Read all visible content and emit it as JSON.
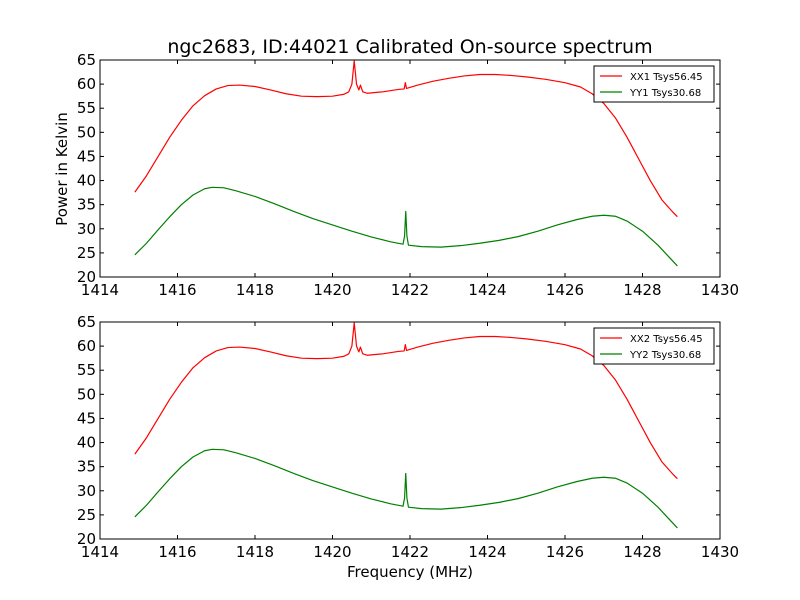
{
  "chart_data": [
    {
      "type": "line",
      "title": "ngc2683, ID:44021 Calibrated On-source spectrum",
      "xlabel": "",
      "ylabel": "Power in Kelvin",
      "xlim": [
        1414,
        1430
      ],
      "ylim": [
        20,
        65
      ],
      "xticks": [
        "1414",
        "1416",
        "1418",
        "1420",
        "1422",
        "1424",
        "1426",
        "1428",
        "1430"
      ],
      "yticks": [
        "20",
        "25",
        "30",
        "35",
        "40",
        "45",
        "50",
        "55",
        "60",
        "65"
      ],
      "legend": "top-right",
      "grid": false,
      "series": [
        {
          "name": "XX1 Tsys56.45",
          "color": "#ff0000",
          "points": [
            [
              1414.9,
              37.6
            ],
            [
              1415.2,
              41.0
            ],
            [
              1415.5,
              45.0
            ],
            [
              1415.8,
              49.0
            ],
            [
              1416.1,
              52.5
            ],
            [
              1416.4,
              55.5
            ],
            [
              1416.7,
              57.6
            ],
            [
              1417.0,
              59.0
            ],
            [
              1417.3,
              59.7
            ],
            [
              1417.6,
              59.8
            ],
            [
              1418.0,
              59.5
            ],
            [
              1418.4,
              58.8
            ],
            [
              1418.8,
              58.0
            ],
            [
              1419.2,
              57.5
            ],
            [
              1419.6,
              57.4
            ],
            [
              1420.0,
              57.5
            ],
            [
              1420.3,
              57.9
            ],
            [
              1420.42,
              58.4
            ],
            [
              1420.5,
              60.0
            ],
            [
              1420.56,
              64.8
            ],
            [
              1420.62,
              60.0
            ],
            [
              1420.68,
              58.8
            ],
            [
              1420.72,
              59.8
            ],
            [
              1420.78,
              58.4
            ],
            [
              1420.9,
              58.1
            ],
            [
              1421.3,
              58.4
            ],
            [
              1421.7,
              58.9
            ],
            [
              1421.85,
              59.0
            ],
            [
              1421.88,
              60.3
            ],
            [
              1421.91,
              59.1
            ],
            [
              1422.2,
              59.8
            ],
            [
              1422.6,
              60.6
            ],
            [
              1423.0,
              61.2
            ],
            [
              1423.4,
              61.7
            ],
            [
              1423.8,
              62.0
            ],
            [
              1424.2,
              62.0
            ],
            [
              1424.6,
              61.8
            ],
            [
              1425.0,
              61.5
            ],
            [
              1425.5,
              61.0
            ],
            [
              1426.0,
              60.3
            ],
            [
              1426.4,
              59.4
            ],
            [
              1426.7,
              58.0
            ],
            [
              1427.0,
              56.0
            ],
            [
              1427.3,
              53.0
            ],
            [
              1427.6,
              49.0
            ],
            [
              1427.9,
              44.5
            ],
            [
              1428.2,
              40.0
            ],
            [
              1428.5,
              36.0
            ],
            [
              1428.8,
              33.3
            ],
            [
              1428.9,
              32.5
            ]
          ]
        },
        {
          "name": "YY1 Tsys30.68",
          "color": "#008000",
          "points": [
            [
              1414.9,
              24.6
            ],
            [
              1415.2,
              27.0
            ],
            [
              1415.5,
              29.8
            ],
            [
              1415.8,
              32.5
            ],
            [
              1416.1,
              35.0
            ],
            [
              1416.4,
              37.0
            ],
            [
              1416.7,
              38.3
            ],
            [
              1416.9,
              38.6
            ],
            [
              1417.2,
              38.5
            ],
            [
              1417.5,
              37.9
            ],
            [
              1418.0,
              36.7
            ],
            [
              1418.5,
              35.2
            ],
            [
              1419.0,
              33.6
            ],
            [
              1419.5,
              32.1
            ],
            [
              1420.0,
              30.8
            ],
            [
              1420.5,
              29.5
            ],
            [
              1421.0,
              28.3
            ],
            [
              1421.5,
              27.3
            ],
            [
              1421.82,
              26.8
            ],
            [
              1421.86,
              28.5
            ],
            [
              1421.89,
              33.6
            ],
            [
              1421.92,
              28.5
            ],
            [
              1421.96,
              26.6
            ],
            [
              1422.3,
              26.3
            ],
            [
              1422.8,
              26.2
            ],
            [
              1423.3,
              26.5
            ],
            [
              1423.8,
              27.0
            ],
            [
              1424.3,
              27.6
            ],
            [
              1424.8,
              28.4
            ],
            [
              1425.3,
              29.5
            ],
            [
              1425.8,
              30.8
            ],
            [
              1426.3,
              31.9
            ],
            [
              1426.7,
              32.6
            ],
            [
              1427.0,
              32.8
            ],
            [
              1427.3,
              32.6
            ],
            [
              1427.6,
              31.6
            ],
            [
              1428.0,
              29.5
            ],
            [
              1428.4,
              26.6
            ],
            [
              1428.7,
              24.0
            ],
            [
              1428.9,
              22.3
            ]
          ]
        }
      ]
    },
    {
      "type": "line",
      "title": "",
      "xlabel": "Frequency (MHz)",
      "ylabel": "",
      "xlim": [
        1414,
        1430
      ],
      "ylim": [
        20,
        65
      ],
      "xticks": [
        "1414",
        "1416",
        "1418",
        "1420",
        "1422",
        "1424",
        "1426",
        "1428",
        "1430"
      ],
      "yticks": [
        "20",
        "25",
        "30",
        "35",
        "40",
        "45",
        "50",
        "55",
        "60",
        "65"
      ],
      "legend": "top-right",
      "grid": false,
      "series": [
        {
          "name": "XX2 Tsys56.45",
          "color": "#ff0000",
          "points": [
            [
              1414.9,
              37.6
            ],
            [
              1415.2,
              41.0
            ],
            [
              1415.5,
              45.0
            ],
            [
              1415.8,
              49.0
            ],
            [
              1416.1,
              52.5
            ],
            [
              1416.4,
              55.5
            ],
            [
              1416.7,
              57.6
            ],
            [
              1417.0,
              59.0
            ],
            [
              1417.3,
              59.7
            ],
            [
              1417.6,
              59.8
            ],
            [
              1418.0,
              59.5
            ],
            [
              1418.4,
              58.8
            ],
            [
              1418.8,
              58.0
            ],
            [
              1419.2,
              57.5
            ],
            [
              1419.6,
              57.4
            ],
            [
              1420.0,
              57.5
            ],
            [
              1420.3,
              57.9
            ],
            [
              1420.42,
              58.4
            ],
            [
              1420.5,
              60.0
            ],
            [
              1420.56,
              64.8
            ],
            [
              1420.62,
              60.0
            ],
            [
              1420.68,
              58.8
            ],
            [
              1420.72,
              59.8
            ],
            [
              1420.78,
              58.4
            ],
            [
              1420.9,
              58.1
            ],
            [
              1421.3,
              58.4
            ],
            [
              1421.7,
              58.9
            ],
            [
              1421.85,
              59.0
            ],
            [
              1421.88,
              60.3
            ],
            [
              1421.91,
              59.1
            ],
            [
              1422.2,
              59.8
            ],
            [
              1422.6,
              60.6
            ],
            [
              1423.0,
              61.2
            ],
            [
              1423.4,
              61.7
            ],
            [
              1423.8,
              62.0
            ],
            [
              1424.2,
              62.0
            ],
            [
              1424.6,
              61.8
            ],
            [
              1425.0,
              61.5
            ],
            [
              1425.5,
              61.0
            ],
            [
              1426.0,
              60.3
            ],
            [
              1426.4,
              59.4
            ],
            [
              1426.7,
              58.0
            ],
            [
              1427.0,
              56.0
            ],
            [
              1427.3,
              53.0
            ],
            [
              1427.6,
              49.0
            ],
            [
              1427.9,
              44.5
            ],
            [
              1428.2,
              40.0
            ],
            [
              1428.5,
              36.0
            ],
            [
              1428.8,
              33.3
            ],
            [
              1428.9,
              32.5
            ]
          ]
        },
        {
          "name": "YY2 Tsys30.68",
          "color": "#008000",
          "points": [
            [
              1414.9,
              24.6
            ],
            [
              1415.2,
              27.0
            ],
            [
              1415.5,
              29.8
            ],
            [
              1415.8,
              32.5
            ],
            [
              1416.1,
              35.0
            ],
            [
              1416.4,
              37.0
            ],
            [
              1416.7,
              38.3
            ],
            [
              1416.9,
              38.6
            ],
            [
              1417.2,
              38.5
            ],
            [
              1417.5,
              37.9
            ],
            [
              1418.0,
              36.7
            ],
            [
              1418.5,
              35.2
            ],
            [
              1419.0,
              33.6
            ],
            [
              1419.5,
              32.1
            ],
            [
              1420.0,
              30.8
            ],
            [
              1420.5,
              29.5
            ],
            [
              1421.0,
              28.3
            ],
            [
              1421.5,
              27.3
            ],
            [
              1421.82,
              26.8
            ],
            [
              1421.86,
              28.5
            ],
            [
              1421.89,
              33.6
            ],
            [
              1421.92,
              28.5
            ],
            [
              1421.96,
              26.6
            ],
            [
              1422.3,
              26.3
            ],
            [
              1422.8,
              26.2
            ],
            [
              1423.3,
              26.5
            ],
            [
              1423.8,
              27.0
            ],
            [
              1424.3,
              27.6
            ],
            [
              1424.8,
              28.4
            ],
            [
              1425.3,
              29.5
            ],
            [
              1425.8,
              30.8
            ],
            [
              1426.3,
              31.9
            ],
            [
              1426.7,
              32.6
            ],
            [
              1427.0,
              32.8
            ],
            [
              1427.3,
              32.6
            ],
            [
              1427.6,
              31.6
            ],
            [
              1428.0,
              29.5
            ],
            [
              1428.4,
              26.6
            ],
            [
              1428.7,
              24.0
            ],
            [
              1428.9,
              22.3
            ]
          ]
        }
      ]
    }
  ]
}
